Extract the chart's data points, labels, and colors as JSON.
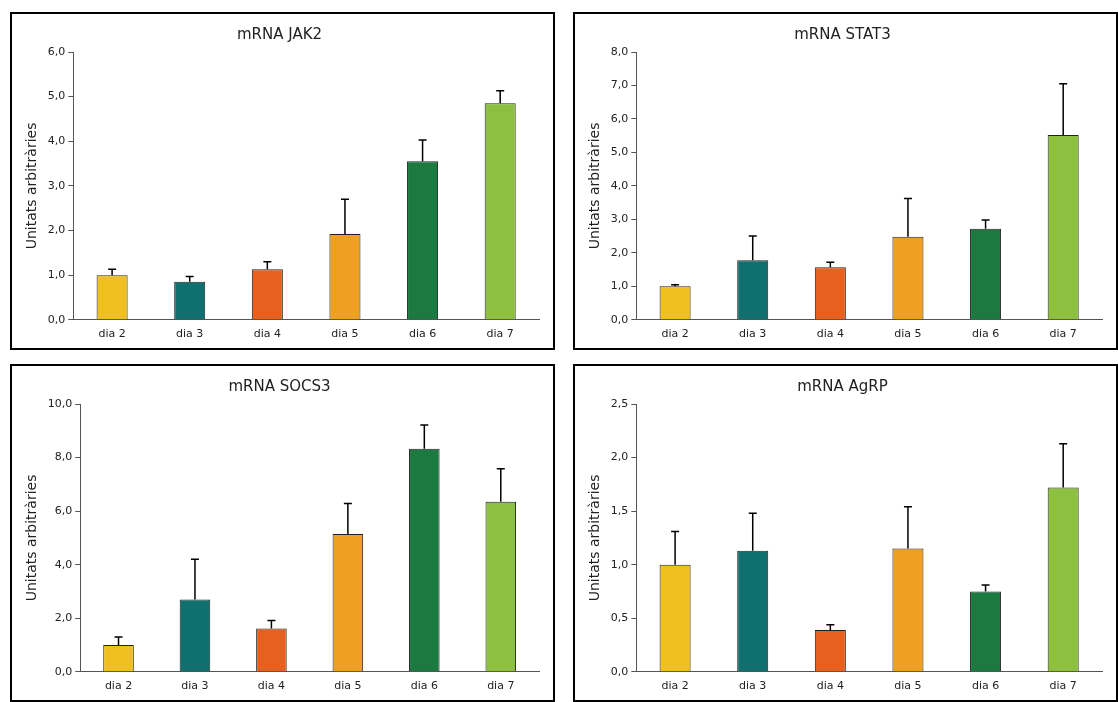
{
  "chart_data": [
    {
      "type": "bar",
      "title": "mRNA JAK2",
      "ylabel": "Unitats arbitràries",
      "categories": [
        "dia 2",
        "dia 3",
        "dia 4",
        "dia 5",
        "dia 6",
        "dia 7"
      ],
      "values": [
        1.0,
        0.85,
        1.13,
        1.92,
        3.55,
        4.85
      ],
      "errors": [
        [
          1.0,
          1.13
        ],
        [
          0.85,
          0.97
        ],
        [
          1.13,
          1.3
        ],
        [
          1.92,
          2.7
        ],
        [
          3.55,
          4.03
        ],
        [
          4.85,
          5.13
        ]
      ],
      "colors": [
        "#f0c020",
        "#107070",
        "#e86020",
        "#f0a020",
        "#1a7a40",
        "#8ec040"
      ],
      "ylim": [
        0,
        6
      ],
      "yticks": [
        {
          "value": 0,
          "label": "0,0"
        },
        {
          "value": 1,
          "label": "1,0"
        },
        {
          "value": 2,
          "label": "2,0"
        },
        {
          "value": 3,
          "label": "3,0"
        },
        {
          "value": 4,
          "label": "4,0"
        },
        {
          "value": 5,
          "label": "5,0"
        },
        {
          "value": 6,
          "label": "6,0"
        }
      ],
      "grid": false,
      "legend": false
    },
    {
      "type": "bar",
      "title": "mRNA STAT3",
      "ylabel": "Unitats arbitràries",
      "categories": [
        "dia 2",
        "dia 3",
        "dia 4",
        "dia 5",
        "dia 6",
        "dia 7"
      ],
      "values": [
        1.0,
        1.78,
        1.57,
        2.48,
        2.72,
        5.52
      ],
      "errors": [
        [
          1.0,
          1.05
        ],
        [
          1.78,
          2.5
        ],
        [
          1.57,
          1.72
        ],
        [
          2.48,
          3.62
        ],
        [
          2.72,
          2.98
        ],
        [
          5.52,
          7.05
        ]
      ],
      "colors": [
        "#f0c020",
        "#107070",
        "#e86020",
        "#f0a020",
        "#1a7a40",
        "#8ec040"
      ],
      "ylim": [
        0,
        8
      ],
      "yticks": [
        {
          "value": 0,
          "label": "0,0"
        },
        {
          "value": 1,
          "label": "1,0"
        },
        {
          "value": 2,
          "label": "2,0"
        },
        {
          "value": 3,
          "label": "3,0"
        },
        {
          "value": 4,
          "label": "4,0"
        },
        {
          "value": 5,
          "label": "5,0"
        },
        {
          "value": 6,
          "label": "6,0"
        },
        {
          "value": 7,
          "label": "7,0"
        },
        {
          "value": 8,
          "label": "8,0"
        }
      ],
      "grid": false,
      "legend": false
    },
    {
      "type": "bar",
      "title": "mRNA SOCS3",
      "ylabel": "Unitats arbitràries",
      "categories": [
        "dia 2",
        "dia 3",
        "dia 4",
        "dia 5",
        "dia 6",
        "dia 7"
      ],
      "values": [
        1.0,
        2.7,
        1.62,
        5.15,
        8.33,
        6.35
      ],
      "errors": [
        [
          1.0,
          1.3
        ],
        [
          2.7,
          4.2
        ],
        [
          1.62,
          1.92
        ],
        [
          5.15,
          6.28
        ],
        [
          8.33,
          9.22
        ],
        [
          6.35,
          7.58
        ]
      ],
      "colors": [
        "#f0c020",
        "#107070",
        "#e86020",
        "#f0a020",
        "#1a7a40",
        "#8ec040"
      ],
      "ylim": [
        0,
        10
      ],
      "yticks": [
        {
          "value": 0,
          "label": "0,0"
        },
        {
          "value": 2,
          "label": "2,0"
        },
        {
          "value": 4,
          "label": "4,0"
        },
        {
          "value": 6,
          "label": "6,0"
        },
        {
          "value": 8,
          "label": "8,0"
        },
        {
          "value": 10,
          "label": "10,0"
        }
      ],
      "grid": false,
      "legend": false
    },
    {
      "type": "bar",
      "title": "mRNA AgRP",
      "ylabel": "Unitats arbitràries",
      "categories": [
        "dia 2",
        "dia 3",
        "dia 4",
        "dia 5",
        "dia 6",
        "dia 7"
      ],
      "values": [
        1.0,
        1.13,
        0.39,
        1.15,
        0.75,
        1.72
      ],
      "errors": [
        [
          1.0,
          1.31
        ],
        [
          1.13,
          1.48
        ],
        [
          0.39,
          0.44
        ],
        [
          1.15,
          1.54
        ],
        [
          0.75,
          0.81
        ],
        [
          1.72,
          2.13
        ]
      ],
      "colors": [
        "#f0c020",
        "#107070",
        "#e86020",
        "#f0a020",
        "#1a7a40",
        "#8ec040"
      ],
      "ylim": [
        0,
        2.5
      ],
      "yticks": [
        {
          "value": 0,
          "label": "0,0"
        },
        {
          "value": 0.5,
          "label": "0,5"
        },
        {
          "value": 1,
          "label": "1,0"
        },
        {
          "value": 1.5,
          "label": "1,5"
        },
        {
          "value": 2,
          "label": "2,0"
        },
        {
          "value": 2.5,
          "label": "2,5"
        }
      ],
      "grid": false,
      "legend": false
    }
  ]
}
